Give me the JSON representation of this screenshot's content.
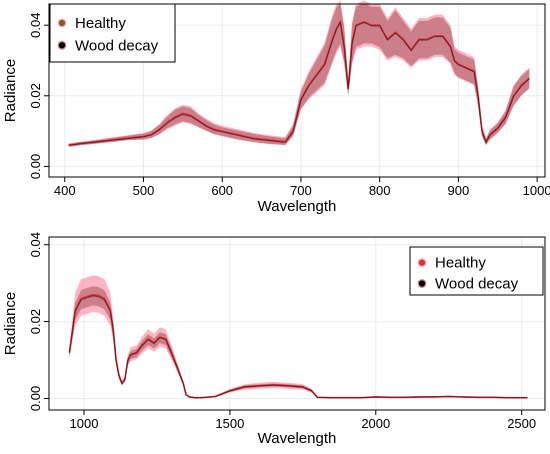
{
  "chart_data": [
    {
      "type": "line",
      "xlabel": "Wavelength",
      "ylabel": "Radiance",
      "xlim": [
        380,
        1010
      ],
      "ylim": [
        -0.003,
        0.046
      ],
      "x_ticks": [
        {
          "value": 400,
          "label": "400"
        },
        {
          "value": 500,
          "label": "500"
        },
        {
          "value": 600,
          "label": "600"
        },
        {
          "value": 700,
          "label": "700"
        },
        {
          "value": 800,
          "label": "800"
        },
        {
          "value": 900,
          "label": "900"
        },
        {
          "value": 1000,
          "label": "1000"
        }
      ],
      "y_ticks": [
        {
          "value": 0.0,
          "label": "0.00"
        },
        {
          "value": 0.02,
          "label": "0.02"
        },
        {
          "value": 0.04,
          "label": "0.04"
        }
      ],
      "grid": true,
      "legend_position": "top-left",
      "series": [
        {
          "name": "Healthy",
          "color": "#e0303a",
          "band_color": "#ff9ab0",
          "marker_color": "#8b5a2b",
          "x": [
            405,
            420,
            440,
            460,
            480,
            500,
            510,
            520,
            530,
            540,
            550,
            560,
            570,
            580,
            590,
            600,
            620,
            640,
            660,
            680,
            690,
            700,
            710,
            720,
            730,
            740,
            745,
            750,
            755,
            760,
            765,
            770,
            780,
            790,
            800,
            810,
            820,
            830,
            840,
            850,
            860,
            870,
            880,
            890,
            895,
            900,
            910,
            920,
            925,
            930,
            935,
            940,
            950,
            960,
            970,
            980,
            990
          ],
          "mean": [
            0.006,
            0.0065,
            0.007,
            0.0075,
            0.008,
            0.0085,
            0.009,
            0.0105,
            0.0125,
            0.014,
            0.015,
            0.0145,
            0.013,
            0.0115,
            0.0105,
            0.01,
            0.009,
            0.008,
            0.0075,
            0.007,
            0.01,
            0.019,
            0.023,
            0.026,
            0.029,
            0.036,
            0.039,
            0.041,
            0.034,
            0.022,
            0.035,
            0.04,
            0.041,
            0.04,
            0.04,
            0.036,
            0.038,
            0.036,
            0.033,
            0.036,
            0.036,
            0.037,
            0.037,
            0.034,
            0.03,
            0.029,
            0.028,
            0.027,
            0.02,
            0.01,
            0.007,
            0.009,
            0.011,
            0.014,
            0.02,
            0.023,
            0.025
          ],
          "lower": [
            0.0055,
            0.006,
            0.0065,
            0.007,
            0.0075,
            0.0075,
            0.008,
            0.009,
            0.0105,
            0.0115,
            0.0125,
            0.012,
            0.011,
            0.01,
            0.009,
            0.0085,
            0.0075,
            0.0068,
            0.0063,
            0.006,
            0.0085,
            0.016,
            0.019,
            0.021,
            0.023,
            0.029,
            0.032,
            0.034,
            0.029,
            0.02,
            0.029,
            0.033,
            0.034,
            0.034,
            0.033,
            0.03,
            0.031,
            0.03,
            0.028,
            0.03,
            0.03,
            0.031,
            0.031,
            0.029,
            0.026,
            0.025,
            0.024,
            0.023,
            0.017,
            0.0085,
            0.006,
            0.0075,
            0.0095,
            0.012,
            0.017,
            0.02,
            0.022
          ],
          "upper": [
            0.0065,
            0.007,
            0.0075,
            0.0082,
            0.0088,
            0.0095,
            0.0102,
            0.012,
            0.0145,
            0.0165,
            0.0175,
            0.017,
            0.015,
            0.0135,
            0.0122,
            0.0115,
            0.0105,
            0.0095,
            0.0088,
            0.0083,
            0.012,
            0.022,
            0.027,
            0.031,
            0.035,
            0.043,
            0.046,
            0.047,
            0.04,
            0.025,
            0.041,
            0.046,
            0.047,
            0.046,
            0.046,
            0.042,
            0.045,
            0.042,
            0.039,
            0.042,
            0.042,
            0.043,
            0.043,
            0.04,
            0.034,
            0.033,
            0.032,
            0.031,
            0.023,
            0.0115,
            0.008,
            0.0105,
            0.0125,
            0.016,
            0.023,
            0.026,
            0.028
          ]
        },
        {
          "name": "Wood decay",
          "color": "#2a0a0a",
          "band_color": "#b86a70",
          "marker_color": "#000000",
          "x": [
            405,
            420,
            440,
            460,
            480,
            500,
            510,
            520,
            530,
            540,
            550,
            560,
            570,
            580,
            590,
            600,
            620,
            640,
            660,
            680,
            690,
            700,
            710,
            720,
            730,
            740,
            745,
            750,
            755,
            760,
            765,
            770,
            780,
            790,
            800,
            810,
            820,
            830,
            840,
            850,
            860,
            870,
            880,
            890,
            895,
            900,
            910,
            920,
            925,
            930,
            935,
            940,
            950,
            960,
            970,
            980,
            990
          ],
          "mean": [
            0.006,
            0.0064,
            0.0069,
            0.0074,
            0.0079,
            0.0084,
            0.0089,
            0.0103,
            0.0122,
            0.0137,
            0.0147,
            0.0142,
            0.0128,
            0.0113,
            0.0103,
            0.0098,
            0.0088,
            0.0078,
            0.0073,
            0.0068,
            0.0098,
            0.0188,
            0.0228,
            0.0258,
            0.0288,
            0.0357,
            0.0388,
            0.0408,
            0.0338,
            0.0218,
            0.0348,
            0.0398,
            0.0408,
            0.0398,
            0.0398,
            0.0358,
            0.0378,
            0.0358,
            0.0328,
            0.0358,
            0.0358,
            0.0368,
            0.0368,
            0.0338,
            0.0298,
            0.0288,
            0.0278,
            0.0268,
            0.0198,
            0.0098,
            0.0068,
            0.0088,
            0.0108,
            0.0138,
            0.0198,
            0.0228,
            0.0248
          ],
          "lower": [
            0.0056,
            0.006,
            0.0064,
            0.0069,
            0.0074,
            0.0077,
            0.0081,
            0.0092,
            0.0108,
            0.0119,
            0.0128,
            0.0123,
            0.0112,
            0.0101,
            0.0092,
            0.0087,
            0.0077,
            0.0069,
            0.0064,
            0.0061,
            0.0087,
            0.0163,
            0.0195,
            0.0216,
            0.0237,
            0.0298,
            0.0328,
            0.0348,
            0.0294,
            0.0202,
            0.0294,
            0.0338,
            0.0348,
            0.0348,
            0.0338,
            0.0306,
            0.0316,
            0.0306,
            0.0284,
            0.0306,
            0.0306,
            0.0316,
            0.0316,
            0.0294,
            0.0263,
            0.0253,
            0.0243,
            0.0233,
            0.0172,
            0.0086,
            0.0061,
            0.0076,
            0.0096,
            0.0121,
            0.0172,
            0.0202,
            0.0222
          ],
          "upper": [
            0.0064,
            0.0069,
            0.0074,
            0.0081,
            0.0087,
            0.0093,
            0.01,
            0.0117,
            0.0141,
            0.016,
            0.017,
            0.0165,
            0.0146,
            0.0131,
            0.0118,
            0.0111,
            0.0101,
            0.0092,
            0.0085,
            0.008,
            0.0115,
            0.0212,
            0.0262,
            0.0302,
            0.0342,
            0.042,
            0.045,
            0.0462,
            0.0392,
            0.0242,
            0.0402,
            0.0452,
            0.0462,
            0.0452,
            0.0452,
            0.0412,
            0.0442,
            0.0412,
            0.0382,
            0.0412,
            0.0412,
            0.0422,
            0.0422,
            0.0392,
            0.0332,
            0.0322,
            0.0312,
            0.0302,
            0.0222,
            0.0112,
            0.0078,
            0.0102,
            0.0122,
            0.0156,
            0.0226,
            0.0256,
            0.0276
          ]
        }
      ]
    },
    {
      "type": "line",
      "xlabel": "Wavelength",
      "ylabel": "Radiance",
      "xlim": [
        880,
        2580
      ],
      "ylim": [
        -0.003,
        0.042
      ],
      "x_ticks": [
        {
          "value": 1000,
          "label": "1000"
        },
        {
          "value": 1500,
          "label": "1500"
        },
        {
          "value": 2000,
          "label": "2000"
        },
        {
          "value": 2500,
          "label": "2500"
        }
      ],
      "y_ticks": [
        {
          "value": 0.0,
          "label": "0.00"
        },
        {
          "value": 0.02,
          "label": "0.02"
        },
        {
          "value": 0.04,
          "label": "0.04"
        }
      ],
      "grid": true,
      "legend_position": "top-right",
      "series": [
        {
          "name": "Healthy",
          "color": "#e0303a",
          "band_color": "#ff9ab0",
          "marker_color": "#e0303a",
          "x": [
            950,
            970,
            990,
            1010,
            1030,
            1050,
            1070,
            1090,
            1100,
            1110,
            1120,
            1130,
            1140,
            1150,
            1160,
            1180,
            1200,
            1220,
            1240,
            1260,
            1280,
            1300,
            1320,
            1340,
            1350,
            1360,
            1380,
            1400,
            1450,
            1500,
            1550,
            1600,
            1650,
            1700,
            1750,
            1780,
            1800,
            1850,
            1900,
            1950,
            2000,
            2050,
            2100,
            2150,
            2200,
            2250,
            2300,
            2350,
            2400,
            2450,
            2500,
            2520
          ],
          "mean": [
            0.012,
            0.023,
            0.026,
            0.0265,
            0.027,
            0.0268,
            0.026,
            0.023,
            0.018,
            0.01,
            0.006,
            0.004,
            0.005,
            0.01,
            0.0115,
            0.012,
            0.014,
            0.0155,
            0.0145,
            0.016,
            0.0155,
            0.012,
            0.008,
            0.004,
            0.001,
            0.0004,
            0.0002,
            0.0002,
            0.0005,
            0.002,
            0.003,
            0.0033,
            0.0035,
            0.0033,
            0.003,
            0.002,
            0.0003,
            0.0002,
            0.0002,
            0.0002,
            0.0004,
            0.0003,
            0.0003,
            0.0004,
            0.0004,
            0.0005,
            0.0004,
            0.0003,
            0.0003,
            0.0002,
            0.0002,
            0.0002
          ],
          "lower": [
            0.0105,
            0.019,
            0.0215,
            0.022,
            0.0225,
            0.0223,
            0.0215,
            0.019,
            0.015,
            0.0085,
            0.005,
            0.0033,
            0.0042,
            0.0085,
            0.0097,
            0.0102,
            0.0118,
            0.013,
            0.0122,
            0.0135,
            0.013,
            0.0101,
            0.0068,
            0.0034,
            0.0008,
            0.0002,
            0.0001,
            0.0001,
            0.0003,
            0.0015,
            0.0023,
            0.0025,
            0.0027,
            0.0025,
            0.0023,
            0.0015,
            0.0002,
            0.0001,
            0.0001,
            0.0001,
            0.0002,
            0.0001,
            0.0001,
            0.0002,
            0.0002,
            0.0003,
            0.0002,
            0.0001,
            0.0001,
            0.0001,
            0.0001,
            0.0001
          ],
          "upper": [
            0.0135,
            0.0275,
            0.031,
            0.0315,
            0.032,
            0.0318,
            0.031,
            0.0275,
            0.021,
            0.0115,
            0.007,
            0.0047,
            0.0058,
            0.0115,
            0.0133,
            0.0138,
            0.0162,
            0.018,
            0.0168,
            0.0185,
            0.018,
            0.0139,
            0.0092,
            0.0046,
            0.0012,
            0.0006,
            0.0003,
            0.0003,
            0.0007,
            0.0025,
            0.0037,
            0.0041,
            0.0043,
            0.0041,
            0.0037,
            0.0025,
            0.0004,
            0.0003,
            0.0003,
            0.0003,
            0.0006,
            0.0005,
            0.0005,
            0.0006,
            0.0006,
            0.0007,
            0.0006,
            0.0005,
            0.0005,
            0.0003,
            0.0003,
            0.0003
          ]
        },
        {
          "name": "Wood decay",
          "color": "#2a0a0a",
          "band_color": "#b86a70",
          "marker_color": "#000000",
          "x": [
            950,
            970,
            990,
            1010,
            1030,
            1050,
            1070,
            1090,
            1100,
            1110,
            1120,
            1130,
            1140,
            1150,
            1160,
            1180,
            1200,
            1220,
            1240,
            1260,
            1280,
            1300,
            1320,
            1340,
            1350,
            1360,
            1380,
            1400,
            1450,
            1500,
            1550,
            1600,
            1650,
            1700,
            1750,
            1780,
            1800,
            1850,
            1900,
            1950,
            2000,
            2050,
            2100,
            2150,
            2200,
            2250,
            2300,
            2350,
            2400,
            2450,
            2500,
            2520
          ],
          "mean": [
            0.0118,
            0.0227,
            0.0257,
            0.0262,
            0.0267,
            0.0265,
            0.0257,
            0.0227,
            0.0178,
            0.0098,
            0.0058,
            0.0039,
            0.0049,
            0.0098,
            0.0113,
            0.0118,
            0.0138,
            0.0153,
            0.0143,
            0.0158,
            0.0153,
            0.0118,
            0.0079,
            0.0039,
            0.001,
            0.0004,
            0.0002,
            0.0002,
            0.0005,
            0.002,
            0.003,
            0.0033,
            0.0035,
            0.0033,
            0.003,
            0.002,
            0.0003,
            0.0002,
            0.0002,
            0.0002,
            0.0004,
            0.0003,
            0.0003,
            0.0004,
            0.0004,
            0.0005,
            0.0004,
            0.0003,
            0.0003,
            0.0002,
            0.0002,
            0.0002
          ],
          "lower": [
            0.0108,
            0.0205,
            0.0232,
            0.0237,
            0.0242,
            0.024,
            0.0232,
            0.0205,
            0.0161,
            0.0089,
            0.0053,
            0.0035,
            0.0045,
            0.0089,
            0.0103,
            0.0107,
            0.0125,
            0.0139,
            0.013,
            0.0144,
            0.0139,
            0.0107,
            0.0072,
            0.0035,
            0.0009,
            0.0003,
            0.0001,
            0.0001,
            0.0004,
            0.0017,
            0.0026,
            0.0029,
            0.0031,
            0.0029,
            0.0026,
            0.0017,
            0.0002,
            0.0001,
            0.0001,
            0.0001,
            0.0003,
            0.0002,
            0.0002,
            0.0003,
            0.0003,
            0.0004,
            0.0003,
            0.0002,
            0.0002,
            0.0001,
            0.0001,
            0.0001
          ],
          "upper": [
            0.0128,
            0.0249,
            0.0282,
            0.0287,
            0.0292,
            0.029,
            0.0282,
            0.0249,
            0.0195,
            0.0107,
            0.0063,
            0.0043,
            0.0053,
            0.0107,
            0.0123,
            0.0129,
            0.0151,
            0.0167,
            0.0156,
            0.0172,
            0.0167,
            0.0129,
            0.0086,
            0.0043,
            0.0011,
            0.0005,
            0.0003,
            0.0003,
            0.0006,
            0.0023,
            0.0034,
            0.0037,
            0.0039,
            0.0037,
            0.0034,
            0.0023,
            0.0004,
            0.0003,
            0.0003,
            0.0003,
            0.0005,
            0.0004,
            0.0004,
            0.0005,
            0.0005,
            0.0006,
            0.0005,
            0.0004,
            0.0004,
            0.0003,
            0.0003,
            0.0003
          ]
        }
      ]
    }
  ]
}
